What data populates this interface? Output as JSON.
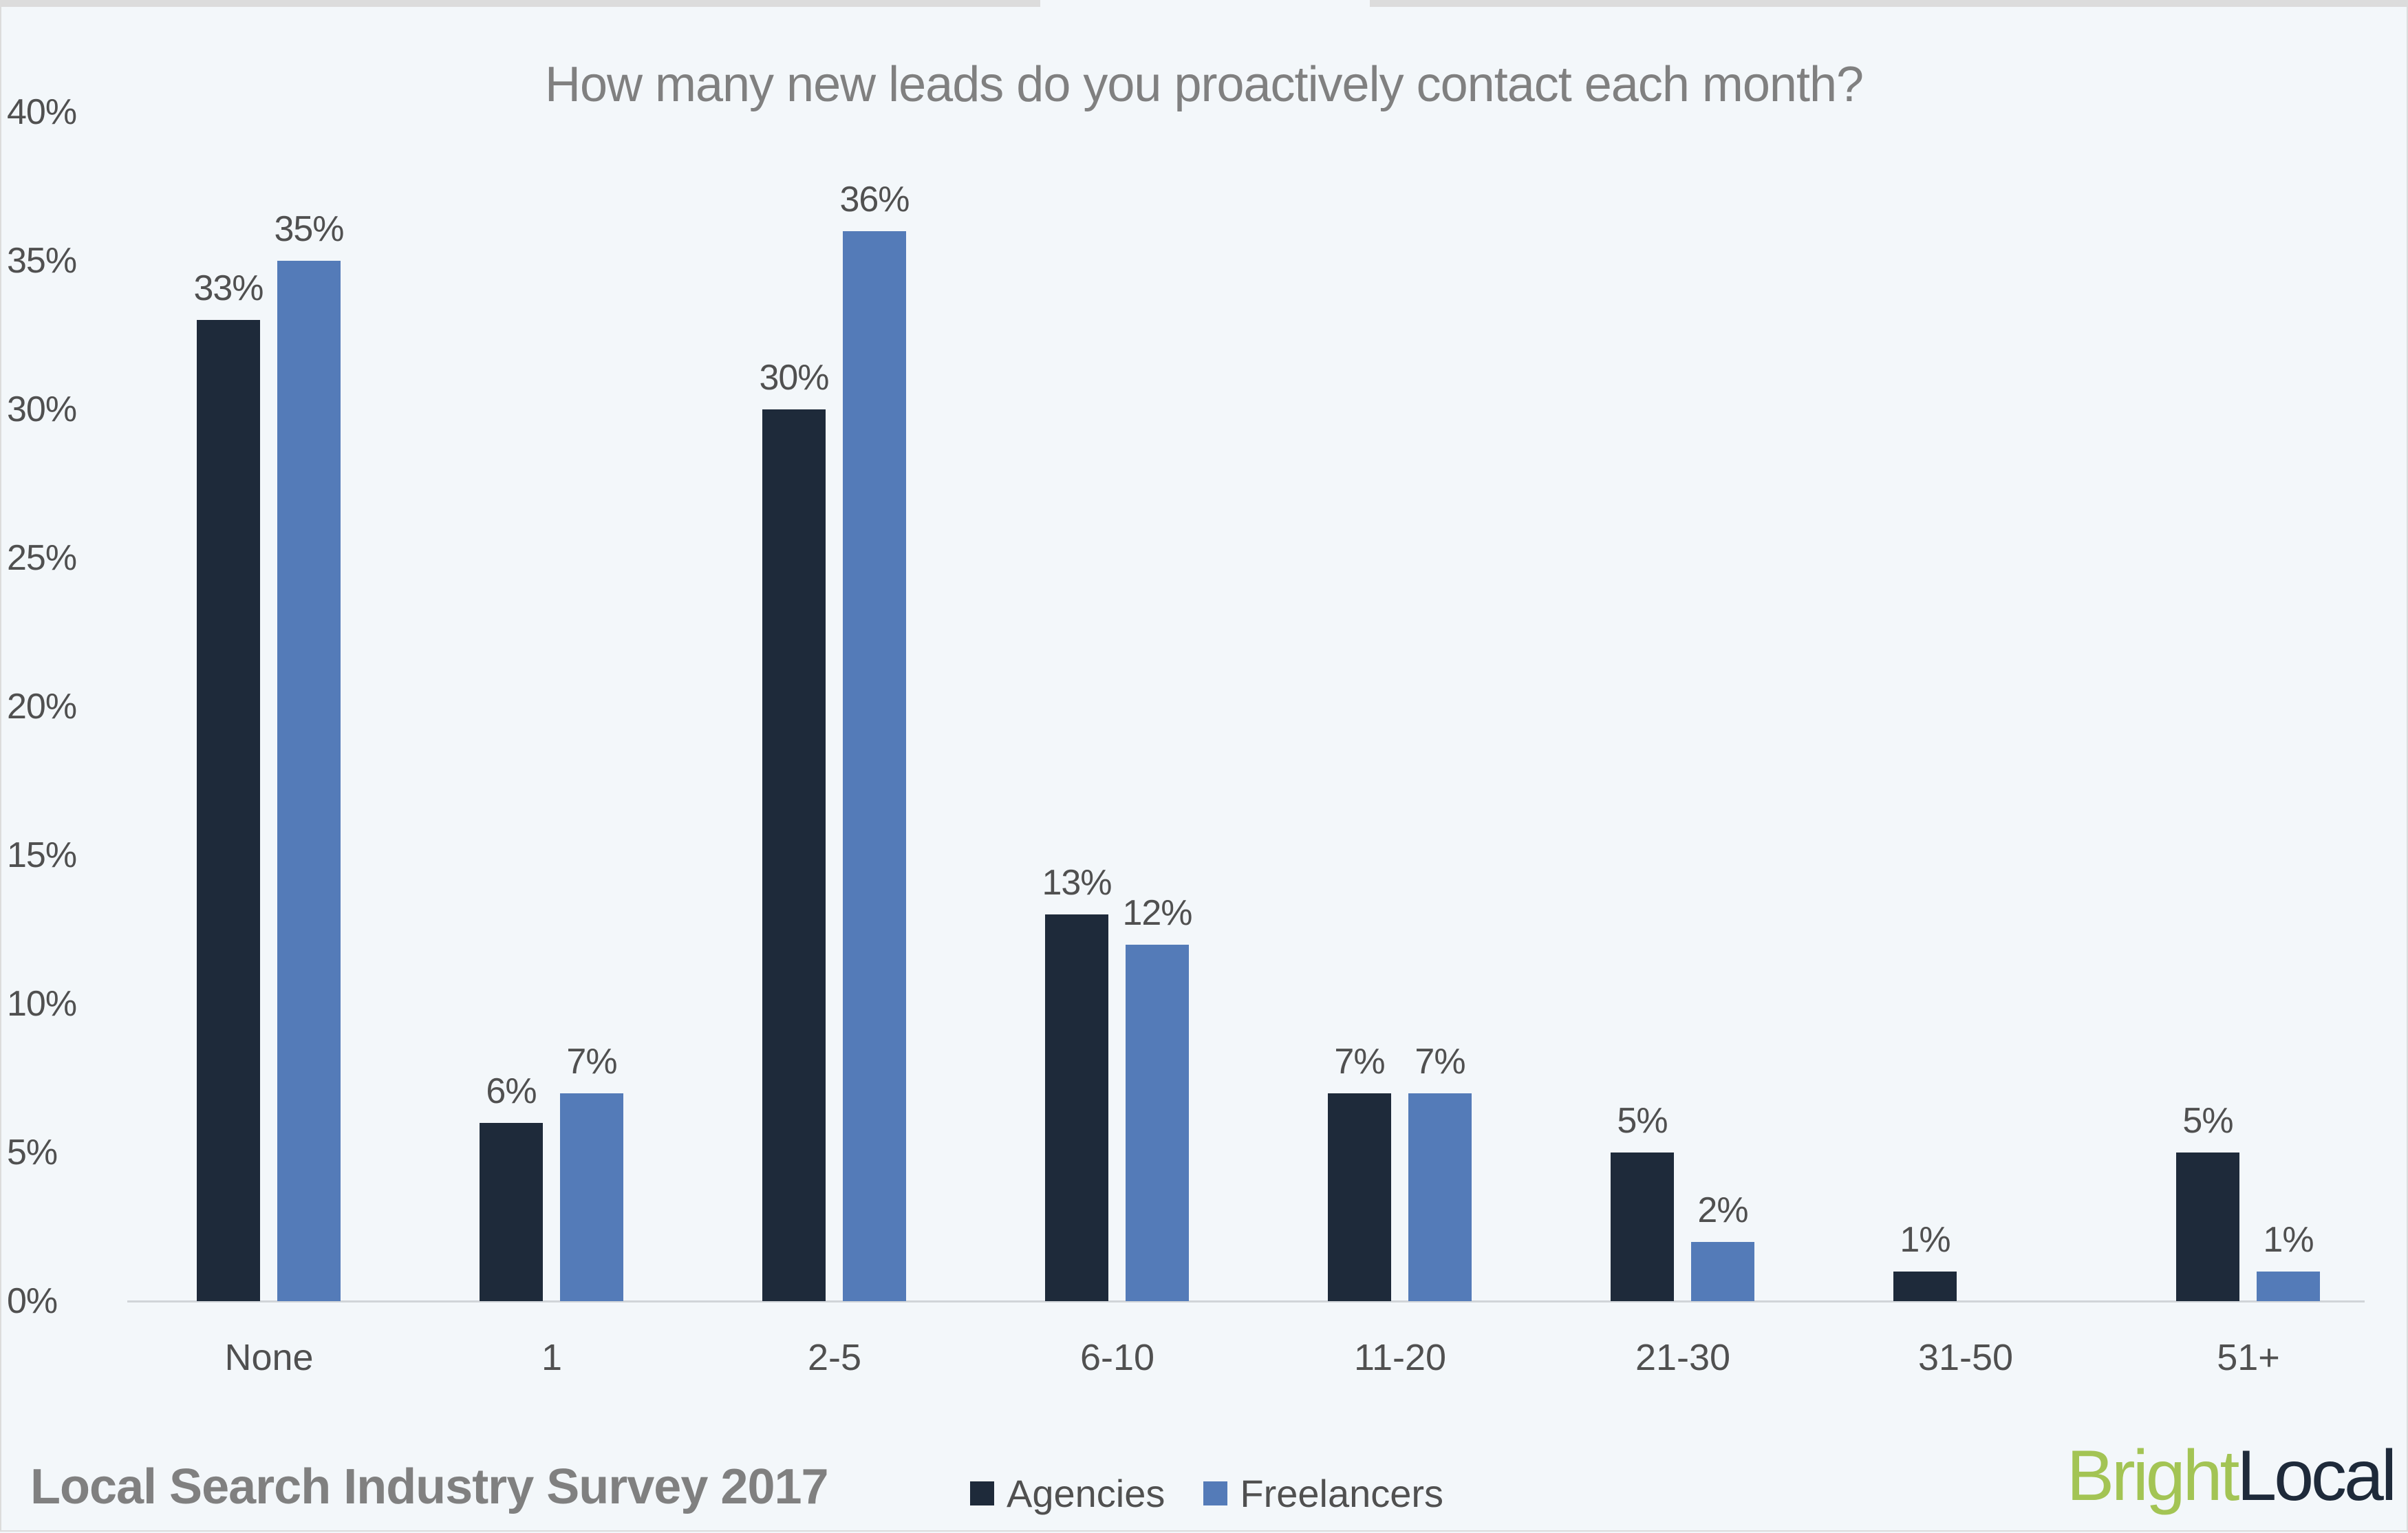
{
  "chart_data": {
    "type": "bar",
    "title": "How many new leads do you proactively contact each month?",
    "xlabel": "",
    "ylabel": "",
    "ylim": [
      0,
      40
    ],
    "yticks": [
      "0%",
      "5%",
      "10%",
      "15%",
      "20%",
      "25%",
      "30%",
      "35%",
      "40%"
    ],
    "categories": [
      "None",
      "1",
      "2-5",
      "6-10",
      "11-20",
      "21-30",
      "31-50",
      "51+"
    ],
    "series": [
      {
        "name": "Agencies",
        "color": "#1e2a3a",
        "values": [
          33,
          6,
          30,
          13,
          7,
          5,
          1,
          5
        ],
        "labels": [
          "33%",
          "6%",
          "30%",
          "13%",
          "7%",
          "5%",
          "1%",
          "5%"
        ]
      },
      {
        "name": "Freelancers",
        "color": "#547bb8",
        "values": [
          35,
          7,
          36,
          12,
          7,
          2,
          null,
          1
        ],
        "labels": [
          "35%",
          "7%",
          "36%",
          "12%",
          "7%",
          "2%",
          "",
          "1%"
        ]
      }
    ],
    "grid": false,
    "legend_position": "bottom"
  },
  "footer": {
    "survey_title": "Local Search Industry Survey 2017",
    "logo_part1": "Bright",
    "logo_part2": "Local",
    "logo_color1": "#a3c454",
    "logo_color2": "#1e2a3a"
  }
}
